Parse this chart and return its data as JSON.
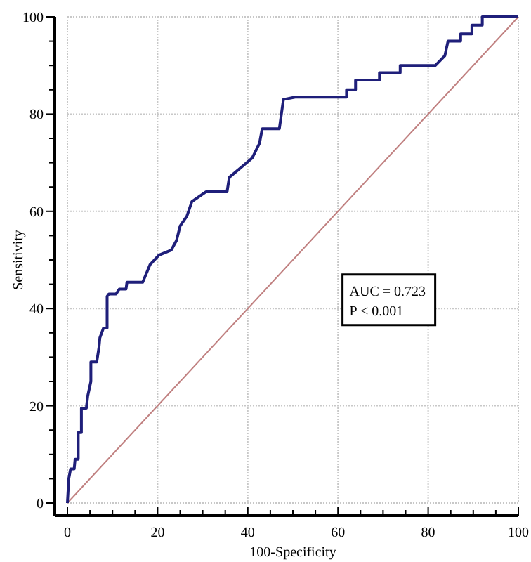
{
  "chart_data": {
    "type": "line",
    "xlabel": "100-Specificity",
    "ylabel": "Sensitivity",
    "xlim": [
      0,
      100
    ],
    "ylim": [
      0,
      100
    ],
    "xticks": [
      0,
      {
        "value": 5,
        "label": null
      },
      {
        "value": 10,
        "label": null
      },
      {
        "value": 15,
        "label": null
      },
      20,
      {
        "value": 25,
        "label": null
      },
      {
        "value": 30,
        "label": null
      },
      {
        "value": 35,
        "label": null
      },
      40,
      {
        "value": 45,
        "label": null
      },
      {
        "value": 50,
        "label": null
      },
      {
        "value": 55,
        "label": null
      },
      60,
      {
        "value": 65,
        "label": null
      },
      {
        "value": 70,
        "label": null
      },
      {
        "value": 75,
        "label": null
      },
      80,
      {
        "value": 85,
        "label": null
      },
      {
        "value": 90,
        "label": null
      },
      {
        "value": 95,
        "label": null
      },
      100
    ],
    "yticks": [
      0,
      {
        "value": 5,
        "label": null
      },
      {
        "value": 10,
        "label": null
      },
      {
        "value": 15,
        "label": null
      },
      20,
      {
        "value": 25,
        "label": null
      },
      {
        "value": 30,
        "label": null
      },
      {
        "value": 35,
        "label": null
      },
      40,
      {
        "value": 45,
        "label": null
      },
      {
        "value": 50,
        "label": null
      },
      {
        "value": 55,
        "label": null
      },
      60,
      {
        "value": 65,
        "label": null
      },
      {
        "value": 70,
        "label": null
      },
      {
        "value": 75,
        "label": null
      },
      80,
      {
        "value": 85,
        "label": null
      },
      {
        "value": 90,
        "label": null
      },
      {
        "value": 95,
        "label": null
      },
      100
    ],
    "grid": true,
    "marker": "none",
    "series": [
      {
        "color": "#1f1f7a",
        "x": [
          0,
          0.3,
          0.7,
          1.5,
          1.7,
          2.4,
          2.4,
          3.1,
          3.1,
          4.2,
          4.5,
          5.2,
          5.2,
          6.5,
          7,
          7.2,
          8,
          8.8,
          8.8,
          9.2,
          10.8,
          11.5,
          13,
          13.2,
          16.7,
          18.3,
          20.3,
          23,
          24.2,
          25,
          26.5,
          27.6,
          30.7,
          35.4,
          35.9,
          39,
          41,
          42.6,
          43.2,
          47,
          47.9,
          50.5,
          61.9,
          61.9,
          63.9,
          63.9,
          69.2,
          69.2,
          73.8,
          73.8,
          81.6,
          83.7,
          84.4,
          87.2,
          87.2,
          89.7,
          89.7,
          92,
          92,
          100
        ],
        "values": [
          0,
          5,
          7,
          7,
          9,
          9,
          14.5,
          14.5,
          19.5,
          19.5,
          22,
          25,
          29,
          29,
          32,
          34,
          36,
          36,
          42.5,
          43,
          43,
          44,
          44,
          45.4,
          45.4,
          49,
          51,
          52,
          54,
          57,
          59,
          62,
          64,
          64,
          67,
          69.4,
          71,
          74,
          77,
          77,
          83,
          83.5,
          83.5,
          85,
          85,
          87,
          87,
          88.5,
          88.5,
          90,
          90,
          92,
          95,
          95,
          96.5,
          96.5,
          98.3,
          98.3,
          100,
          100
        ]
      },
      {
        "color": "#c08080",
        "x": [
          0,
          100
        ],
        "values": [
          0,
          100
        ]
      }
    ],
    "annotations": [
      "AUC = 0.723",
      "P < 0.001"
    ]
  }
}
